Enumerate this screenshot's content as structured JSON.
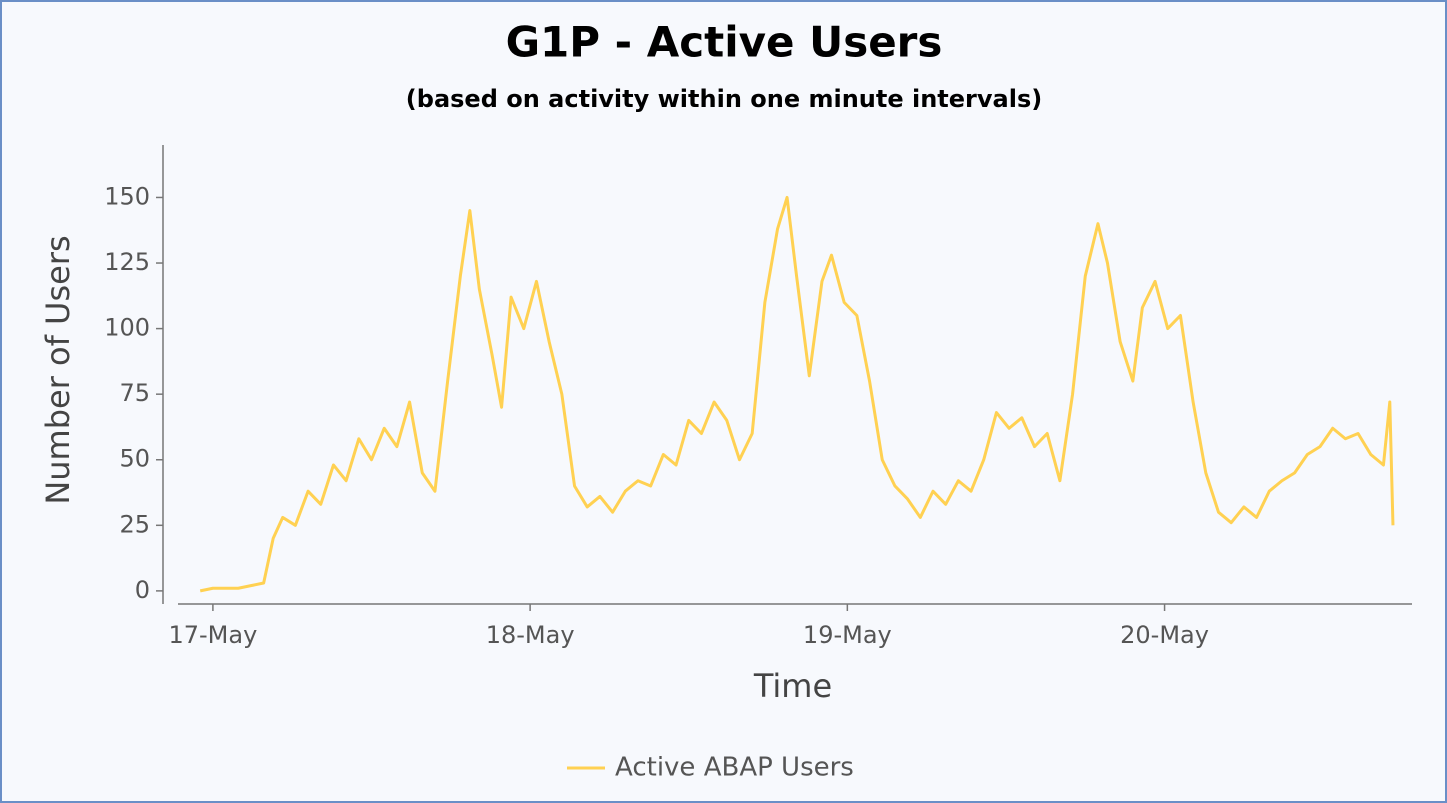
{
  "chart_data": {
    "type": "line",
    "title": "G1P - Active Users",
    "subtitle": "(based on activity within one minute intervals)",
    "x_label": "Time",
    "y_label": "Number of Users",
    "x": [
      16.96,
      17.0,
      17.04,
      17.08,
      17.12,
      17.16,
      17.19,
      17.22,
      17.26,
      17.3,
      17.34,
      17.38,
      17.42,
      17.46,
      17.5,
      17.54,
      17.58,
      17.62,
      17.66,
      17.7,
      17.74,
      17.78,
      17.81,
      17.84,
      17.88,
      17.91,
      17.94,
      17.98,
      18.02,
      18.06,
      18.1,
      18.14,
      18.18,
      18.22,
      18.26,
      18.3,
      18.34,
      18.38,
      18.42,
      18.46,
      18.5,
      18.54,
      18.58,
      18.62,
      18.66,
      18.7,
      18.74,
      18.78,
      18.81,
      18.84,
      18.88,
      18.92,
      18.95,
      18.99,
      19.03,
      19.07,
      19.11,
      19.15,
      19.19,
      19.23,
      19.27,
      19.31,
      19.35,
      19.39,
      19.43,
      19.47,
      19.51,
      19.55,
      19.59,
      19.63,
      19.67,
      19.71,
      19.75,
      19.79,
      19.82,
      19.86,
      19.9,
      19.93,
      19.97,
      20.01,
      20.05,
      20.09,
      20.13,
      20.17,
      20.21,
      20.25,
      20.29,
      20.33,
      20.37,
      20.41,
      20.45,
      20.49,
      20.53,
      20.57,
      20.61,
      20.65,
      20.69,
      20.71,
      20.72
    ],
    "series": [
      {
        "name": "Active ABAP Users",
        "color": "#ffd152",
        "values": [
          0,
          1,
          1,
          1,
          2,
          3,
          20,
          28,
          25,
          38,
          33,
          48,
          42,
          58,
          50,
          62,
          55,
          72,
          45,
          38,
          80,
          120,
          145,
          115,
          90,
          70,
          112,
          100,
          118,
          95,
          75,
          40,
          32,
          36,
          30,
          38,
          42,
          40,
          52,
          48,
          65,
          60,
          72,
          65,
          50,
          60,
          110,
          138,
          150,
          120,
          82,
          118,
          128,
          110,
          105,
          80,
          50,
          40,
          35,
          28,
          38,
          33,
          42,
          38,
          50,
          68,
          62,
          66,
          55,
          60,
          42,
          75,
          120,
          140,
          125,
          95,
          80,
          108,
          118,
          100,
          105,
          72,
          45,
          30,
          26,
          32,
          28,
          38,
          42,
          45,
          52,
          55,
          62,
          58,
          60,
          52,
          48,
          72,
          25
        ]
      }
    ],
    "xlim": [
      16.89,
      20.78
    ],
    "xticks": [
      {
        "value": 17,
        "label": "17-May"
      },
      {
        "value": 18,
        "label": "18-May"
      },
      {
        "value": 19,
        "label": "19-May"
      },
      {
        "value": 20,
        "label": "20-May"
      }
    ],
    "ylim": [
      -5,
      170
    ],
    "yticks": [
      0,
      25,
      50,
      75,
      100,
      125,
      150
    ],
    "legend": "bottom"
  }
}
